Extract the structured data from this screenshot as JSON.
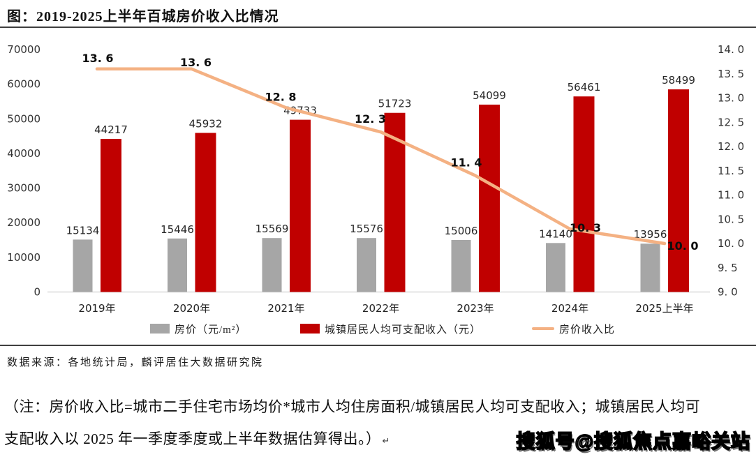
{
  "title": "图：2019-2025上半年百城房价收入比情况",
  "chart_data": {
    "type": "bar",
    "subtype": "grouped bars with secondary-axis line",
    "title": "2019-2025上半年百城房价收入比情况",
    "categories": [
      "2019年",
      "2020年",
      "2021年",
      "2022年",
      "2023年",
      "2024年",
      "2025上半年"
    ],
    "series": [
      {
        "name": "房价（元/m²）",
        "type": "bar",
        "axis": "left",
        "color": "#A6A6A6",
        "values": [
          15134,
          15446,
          15569,
          15576,
          15006,
          14140,
          13956
        ]
      },
      {
        "name": "城镇居民人均可支配收入（元）",
        "type": "bar",
        "axis": "left",
        "color": "#C00000",
        "values": [
          44217,
          45932,
          49733,
          51723,
          54099,
          56461,
          58499
        ]
      },
      {
        "name": "房价收入比",
        "type": "line",
        "axis": "right",
        "color": "#F4B183",
        "values": [
          13.6,
          13.6,
          12.8,
          12.3,
          11.4,
          10.3,
          10.0
        ]
      }
    ],
    "left_axis": {
      "min": 0,
      "max": 70000,
      "step": 10000,
      "ticks": [
        0,
        10000,
        20000,
        30000,
        40000,
        50000,
        60000,
        70000
      ]
    },
    "right_axis": {
      "min": 9.0,
      "max": 14.0,
      "step": 0.5,
      "ticks": [
        9.0,
        9.5,
        10.0,
        10.5,
        11.0,
        11.5,
        12.0,
        12.5,
        13.0,
        13.5,
        14.0
      ]
    },
    "grid": false,
    "legend_position": "bottom",
    "data_labels": true
  },
  "source": "数据来源：各地统计局，麟评居住大数据研究院",
  "note": {
    "line1": "（注：房价收入比=城市二手住宅市场均价*城市人均住房面积/城镇居民人均可支配收入；城镇居民人均可",
    "line2": "支配收入以 2025 年一季度季度或上半年数据估算得出。）",
    "mark": "↵"
  },
  "watermark": "搜狐号@搜狐焦点嘉峪关站"
}
